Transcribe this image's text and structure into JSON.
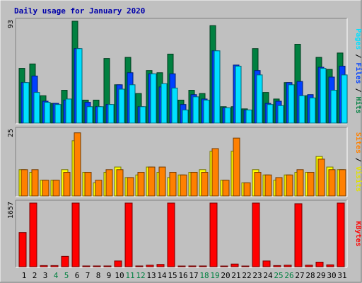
{
  "chart_data": {
    "type": "bar",
    "title": "Daily usage for January 2020",
    "categories": [
      "1",
      "2",
      "3",
      "4",
      "5",
      "6",
      "7",
      "8",
      "9",
      "10",
      "11",
      "12",
      "13",
      "14",
      "15",
      "16",
      "17",
      "18",
      "19",
      "20",
      "21",
      "22",
      "23",
      "24",
      "25",
      "26",
      "27",
      "28",
      "29",
      "30",
      "31"
    ],
    "weekend_days": [
      "4",
      "5",
      "11",
      "12",
      "18",
      "19",
      "25",
      "26"
    ],
    "panels": [
      {
        "id": "top",
        "max_label": "93",
        "ylim": [
          0,
          93
        ],
        "side_labels": [
          "Pages",
          "Files",
          "Hits"
        ],
        "separator": " / ",
        "series": [
          {
            "name": "Hits",
            "color": "#008040",
            "values": [
              50,
              54,
              25,
              18,
              30,
              93,
              21,
              21,
              59,
              35,
              60,
              27,
              48,
              46,
              63,
              21,
              30,
              27,
              89,
              15,
              15,
              13,
              68,
              28,
              22,
              37,
              72,
              25,
              60,
              49,
              64
            ]
          },
          {
            "name": "Files",
            "color": "#0040ff",
            "values": [
              37,
              43,
              20,
              18,
              21,
              68,
              19,
              15,
              17,
              35,
              46,
              15,
              45,
              33,
              45,
              17,
              26,
              22,
              66,
              14,
              53,
              12,
              48,
              18,
              20,
              37,
              38,
              26,
              51,
              42,
              52
            ]
          },
          {
            "name": "Pages",
            "color": "#00e0ff",
            "values": [
              37,
              28,
              19,
              17,
              22,
              68,
              15,
              15,
              17,
              31,
              35,
              15,
              45,
              36,
              32,
              12,
              24,
              21,
              66,
              14,
              52,
              12,
              44,
              17,
              16,
              35,
              25,
              23,
              50,
              30,
              44
            ]
          }
        ]
      },
      {
        "id": "middle",
        "max_label": "25",
        "ylim": [
          0,
          25
        ],
        "side_labels": [
          "Sites",
          "Visits"
        ],
        "separator": " / ",
        "series": [
          {
            "name": "Visits",
            "color": "#ffff00",
            "values": [
              10,
              9,
              6,
              6,
              10,
              21,
              9,
              5,
              9,
              11,
              7,
              8,
              11,
              9,
              7,
              8,
              9,
              10,
              17,
              6,
              17,
              5,
              10,
              8,
              6,
              8,
              9,
              9,
              15,
              11,
              10
            ]
          },
          {
            "name": "Sites",
            "color": "#ff8000",
            "values": [
              10,
              10,
              6,
              6,
              9,
              24,
              9,
              6,
              10,
              10,
              7,
              9,
              11,
              11,
              9,
              8,
              9,
              9,
              18,
              6,
              22,
              5,
              9,
              8,
              7,
              8,
              10,
              9,
              14,
              10,
              10
            ]
          }
        ]
      },
      {
        "id": "bottom",
        "max_label": "1657",
        "ylim": [
          0,
          1657
        ],
        "side_labels": [
          "KBytes"
        ],
        "separator": "",
        "series": [
          {
            "name": "KBytes",
            "color": "#ff0000",
            "values": [
              890,
              1657,
              30,
              30,
              270,
              1657,
              20,
              20,
              20,
              150,
              1657,
              20,
              40,
              60,
              1657,
              15,
              20,
              20,
              1657,
              10,
              70,
              10,
              1657,
              150,
              30,
              40,
              1640,
              40,
              120,
              50,
              1657
            ]
          }
        ]
      }
    ]
  }
}
